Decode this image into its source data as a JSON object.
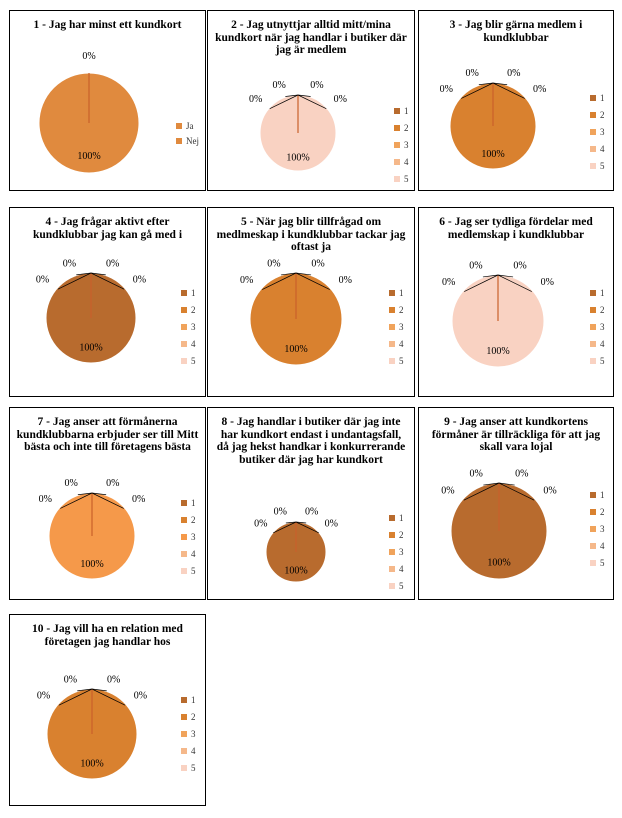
{
  "chart_data": [
    {
      "type": "pie",
      "title": "1 - Jag har minst ett kundkort",
      "categories": [
        "Ja",
        "Nej"
      ],
      "values": [
        1,
        0
      ],
      "slice_labels": [
        "100%",
        "0%"
      ],
      "colors": [
        "#E08A3E",
        "#E08A3E"
      ],
      "legend": "right"
    },
    {
      "type": "pie",
      "title": "2 - Jag utnyttjar alltid mitt/mina kundkort  när jag handlar i butiker där jag är medlem",
      "categories": [
        "1",
        "2",
        "3",
        "4",
        "5"
      ],
      "values": [
        0,
        0,
        0,
        0,
        1
      ],
      "slice_labels": [
        "0%",
        "0%",
        "0%",
        "0%",
        "100%"
      ],
      "colors": [
        "#B86B2E",
        "#D9812F",
        "#F0A35B",
        "#F5B88A",
        "#F9D2C2"
      ],
      "legend": "right"
    },
    {
      "type": "pie",
      "title": "3 - Jag blir gärna medlem i kundklubbar",
      "categories": [
        "1",
        "2",
        "3",
        "4",
        "5"
      ],
      "values": [
        0,
        1,
        0,
        0,
        0
      ],
      "slice_labels": [
        "0%",
        "100%",
        "0%",
        "0%",
        "0%"
      ],
      "colors": [
        "#B86B2E",
        "#D9812F",
        "#F0A35B",
        "#F5B88A",
        "#F9D2C2"
      ],
      "legend": "right"
    },
    {
      "type": "pie",
      "title": "4 - Jag frågar aktivt efter kundklubbar jag kan gå med i",
      "categories": [
        "1",
        "2",
        "3",
        "4",
        "5"
      ],
      "values": [
        1,
        0,
        0,
        0,
        0
      ],
      "slice_labels": [
        "100%",
        "0%",
        "0%",
        "0%",
        "0%"
      ],
      "colors": [
        "#B86B2E",
        "#D9812F",
        "#F0A35B",
        "#F5B88A",
        "#F9D2C2"
      ],
      "legend": "right"
    },
    {
      "type": "pie",
      "title": "5 - När jag blir tillfrågad  om medlmeskap i kundklubbar tackar jag oftast ja",
      "categories": [
        "1",
        "2",
        "3",
        "4",
        "5"
      ],
      "values": [
        0,
        1,
        0,
        0,
        0
      ],
      "slice_labels": [
        "0%",
        "100%",
        "0%",
        "0%",
        "0%"
      ],
      "colors": [
        "#B86B2E",
        "#D9812F",
        "#F0A35B",
        "#F5B88A",
        "#F9D2C2"
      ],
      "legend": "right"
    },
    {
      "type": "pie",
      "title": "6 - Jag ser tydliga fördelar med medlemskap i kundklubbar",
      "categories": [
        "1",
        "2",
        "3",
        "4",
        "5"
      ],
      "values": [
        0,
        0,
        0,
        0,
        1
      ],
      "slice_labels": [
        "0%",
        "0%",
        "0%",
        "0%",
        "100%"
      ],
      "colors": [
        "#B86B2E",
        "#D9812F",
        "#F0A35B",
        "#F5B88A",
        "#F9D2C2"
      ],
      "legend": "right"
    },
    {
      "type": "pie",
      "title": "7 - Jag anser att förmånerna kundklubbarna erbjuder ser till Mitt bästa och inte till företagens bästa",
      "categories": [
        "1",
        "2",
        "3",
        "4",
        "5"
      ],
      "values": [
        0,
        0,
        1,
        0,
        0
      ],
      "slice_labels": [
        "0%",
        "0%",
        "100%",
        "0%",
        "0%"
      ],
      "colors": [
        "#B86B2E",
        "#D9812F",
        "#F5994A",
        "#F5B88A",
        "#F9D2C2"
      ],
      "legend": "right"
    },
    {
      "type": "pie",
      "title": "8 - Jag handlar i butiker där jag inte har kundkort endast i undantagsfall, då jag hekst handkar i konkurrerande butiker där jag har kundkort",
      "categories": [
        "1",
        "2",
        "3",
        "4",
        "5"
      ],
      "values": [
        1,
        0,
        0,
        0,
        0
      ],
      "slice_labels": [
        "100%",
        "0%",
        "0%",
        "0%",
        "0%"
      ],
      "colors": [
        "#B86B2E",
        "#D9812F",
        "#F0A35B",
        "#F5B88A",
        "#F9D2C2"
      ],
      "legend": "right"
    },
    {
      "type": "pie",
      "title": "9 - Jag anser att kundkortens förmåner är tillräckliga  för att jag skall vara lojal",
      "categories": [
        "1",
        "2",
        "3",
        "4",
        "5"
      ],
      "values": [
        1,
        0,
        0,
        0,
        0
      ],
      "slice_labels": [
        "100%",
        "0%",
        "0%",
        "0%",
        "0%"
      ],
      "colors": [
        "#B86B2E",
        "#D9812F",
        "#F0A35B",
        "#F5B88A",
        "#F9D2C2"
      ],
      "legend": "right"
    },
    {
      "type": "pie",
      "title": "10 - Jag vill ha en relation med företagen jag handlar hos",
      "categories": [
        "1",
        "2",
        "3",
        "4",
        "5"
      ],
      "values": [
        0,
        1,
        0,
        0,
        0
      ],
      "slice_labels": [
        "0%",
        "100%",
        "0%",
        "0%",
        "0%"
      ],
      "colors": [
        "#B86B2E",
        "#D9812F",
        "#F0A35B",
        "#F5B88A",
        "#F9D2C2"
      ],
      "legend": "right"
    }
  ]
}
